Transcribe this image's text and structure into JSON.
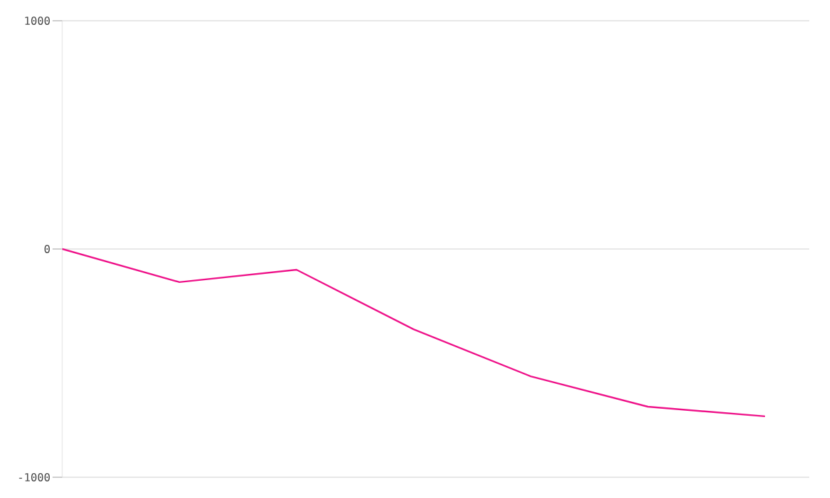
{
  "chart_data": {
    "type": "line",
    "categories": [
      null,
      null,
      null,
      null,
      null,
      null,
      null
    ],
    "values": [
      0,
      -145,
      -91,
      -352,
      -558,
      -691,
      -733
    ],
    "color": "#ee1289",
    "ylim": [
      -1000,
      1000
    ],
    "yticks": [
      -1000,
      0,
      1000
    ],
    "tick_labels": "y",
    "grid": "y",
    "marker": "none",
    "line_style": "solid"
  }
}
